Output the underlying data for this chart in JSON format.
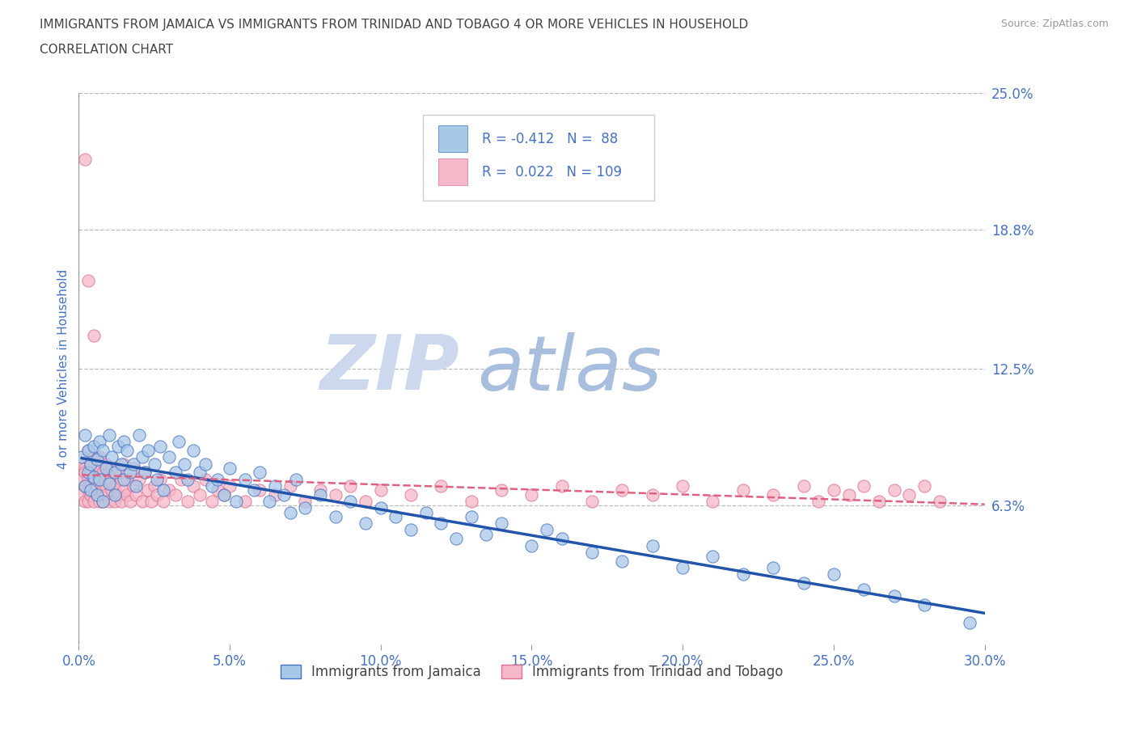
{
  "title_line1": "IMMIGRANTS FROM JAMAICA VS IMMIGRANTS FROM TRINIDAD AND TOBAGO 4 OR MORE VEHICLES IN HOUSEHOLD",
  "title_line2": "CORRELATION CHART",
  "source_text": "Source: ZipAtlas.com",
  "ylabel": "4 or more Vehicles in Household",
  "xlim": [
    0.0,
    0.3
  ],
  "ylim": [
    0.0,
    0.25
  ],
  "xtick_labels": [
    "0.0%",
    "5.0%",
    "10.0%",
    "15.0%",
    "20.0%",
    "25.0%",
    "30.0%"
  ],
  "xtick_values": [
    0.0,
    0.05,
    0.1,
    0.15,
    0.2,
    0.25,
    0.3
  ],
  "ytick_labels": [
    "6.3%",
    "12.5%",
    "18.8%",
    "25.0%"
  ],
  "ytick_values": [
    0.063,
    0.125,
    0.188,
    0.25
  ],
  "gridline_color": "#bbbbbb",
  "title_color": "#555555",
  "tick_label_color": "#4472c4",
  "watermark_zip": "ZIP",
  "watermark_atlas": "atlas",
  "watermark_color_zip": "#c8d4ec",
  "watermark_color_atlas": "#b8cce8",
  "jamaica_color": "#a8c8e8",
  "jamaica_edge_color": "#4472c4",
  "trinidad_color": "#f4b8c8",
  "trinidad_edge_color": "#e07090",
  "jamaica_R": -0.412,
  "jamaica_N": 88,
  "trinidad_R": 0.022,
  "trinidad_N": 109,
  "legend_label_jamaica": "Immigrants from Jamaica",
  "legend_label_trinidad": "Immigrants from Trinidad and Tobago",
  "jamaica_scatter_x": [
    0.001,
    0.002,
    0.002,
    0.003,
    0.003,
    0.004,
    0.004,
    0.005,
    0.005,
    0.006,
    0.006,
    0.007,
    0.007,
    0.008,
    0.008,
    0.009,
    0.01,
    0.01,
    0.011,
    0.012,
    0.012,
    0.013,
    0.014,
    0.015,
    0.015,
    0.016,
    0.017,
    0.018,
    0.019,
    0.02,
    0.021,
    0.022,
    0.023,
    0.025,
    0.026,
    0.027,
    0.028,
    0.03,
    0.032,
    0.033,
    0.035,
    0.036,
    0.038,
    0.04,
    0.042,
    0.044,
    0.046,
    0.048,
    0.05,
    0.052,
    0.055,
    0.058,
    0.06,
    0.063,
    0.065,
    0.068,
    0.07,
    0.072,
    0.075,
    0.08,
    0.085,
    0.09,
    0.095,
    0.1,
    0.105,
    0.11,
    0.115,
    0.12,
    0.125,
    0.13,
    0.135,
    0.14,
    0.15,
    0.155,
    0.16,
    0.17,
    0.18,
    0.19,
    0.2,
    0.21,
    0.22,
    0.23,
    0.24,
    0.25,
    0.26,
    0.27,
    0.28,
    0.295
  ],
  "jamaica_scatter_y": [
    0.085,
    0.095,
    0.072,
    0.088,
    0.078,
    0.082,
    0.07,
    0.09,
    0.076,
    0.084,
    0.068,
    0.092,
    0.075,
    0.088,
    0.065,
    0.08,
    0.095,
    0.073,
    0.085,
    0.078,
    0.068,
    0.09,
    0.082,
    0.075,
    0.092,
    0.088,
    0.078,
    0.082,
    0.072,
    0.095,
    0.085,
    0.078,
    0.088,
    0.082,
    0.075,
    0.09,
    0.07,
    0.085,
    0.078,
    0.092,
    0.082,
    0.075,
    0.088,
    0.078,
    0.082,
    0.072,
    0.075,
    0.068,
    0.08,
    0.065,
    0.075,
    0.07,
    0.078,
    0.065,
    0.072,
    0.068,
    0.06,
    0.075,
    0.062,
    0.068,
    0.058,
    0.065,
    0.055,
    0.062,
    0.058,
    0.052,
    0.06,
    0.055,
    0.048,
    0.058,
    0.05,
    0.055,
    0.045,
    0.052,
    0.048,
    0.042,
    0.038,
    0.045,
    0.035,
    0.04,
    0.032,
    0.035,
    0.028,
    0.032,
    0.025,
    0.022,
    0.018,
    0.01
  ],
  "trinidad_scatter_x": [
    0.001,
    0.001,
    0.001,
    0.002,
    0.002,
    0.002,
    0.002,
    0.002,
    0.003,
    0.003,
    0.003,
    0.003,
    0.003,
    0.004,
    0.004,
    0.004,
    0.004,
    0.005,
    0.005,
    0.005,
    0.005,
    0.005,
    0.006,
    0.006,
    0.006,
    0.006,
    0.007,
    0.007,
    0.007,
    0.007,
    0.008,
    0.008,
    0.008,
    0.009,
    0.009,
    0.009,
    0.01,
    0.01,
    0.01,
    0.011,
    0.011,
    0.012,
    0.012,
    0.012,
    0.013,
    0.013,
    0.014,
    0.014,
    0.015,
    0.015,
    0.016,
    0.016,
    0.017,
    0.018,
    0.018,
    0.019,
    0.02,
    0.021,
    0.022,
    0.023,
    0.024,
    0.025,
    0.026,
    0.027,
    0.028,
    0.03,
    0.032,
    0.034,
    0.036,
    0.038,
    0.04,
    0.042,
    0.044,
    0.046,
    0.048,
    0.05,
    0.055,
    0.06,
    0.065,
    0.07,
    0.075,
    0.08,
    0.085,
    0.09,
    0.095,
    0.1,
    0.11,
    0.12,
    0.13,
    0.14,
    0.15,
    0.16,
    0.17,
    0.18,
    0.19,
    0.2,
    0.21,
    0.22,
    0.23,
    0.24,
    0.245,
    0.25,
    0.255,
    0.26,
    0.265,
    0.27,
    0.275,
    0.28,
    0.285
  ],
  "trinidad_scatter_y": [
    0.075,
    0.068,
    0.082,
    0.22,
    0.072,
    0.065,
    0.08,
    0.078,
    0.088,
    0.07,
    0.165,
    0.075,
    0.065,
    0.082,
    0.072,
    0.068,
    0.078,
    0.085,
    0.07,
    0.065,
    0.14,
    0.075,
    0.082,
    0.068,
    0.078,
    0.072,
    0.085,
    0.065,
    0.075,
    0.08,
    0.07,
    0.078,
    0.065,
    0.082,
    0.072,
    0.068,
    0.078,
    0.075,
    0.065,
    0.08,
    0.07,
    0.078,
    0.065,
    0.072,
    0.08,
    0.068,
    0.075,
    0.065,
    0.082,
    0.07,
    0.068,
    0.075,
    0.065,
    0.08,
    0.072,
    0.068,
    0.075,
    0.065,
    0.078,
    0.07,
    0.065,
    0.072,
    0.068,
    0.075,
    0.065,
    0.07,
    0.068,
    0.075,
    0.065,
    0.072,
    0.068,
    0.075,
    0.065,
    0.07,
    0.068,
    0.072,
    0.065,
    0.07,
    0.068,
    0.072,
    0.065,
    0.07,
    0.068,
    0.072,
    0.065,
    0.07,
    0.068,
    0.072,
    0.065,
    0.07,
    0.068,
    0.072,
    0.065,
    0.07,
    0.068,
    0.072,
    0.065,
    0.07,
    0.068,
    0.072,
    0.065,
    0.07,
    0.068,
    0.072,
    0.065,
    0.07,
    0.068,
    0.072,
    0.065
  ]
}
